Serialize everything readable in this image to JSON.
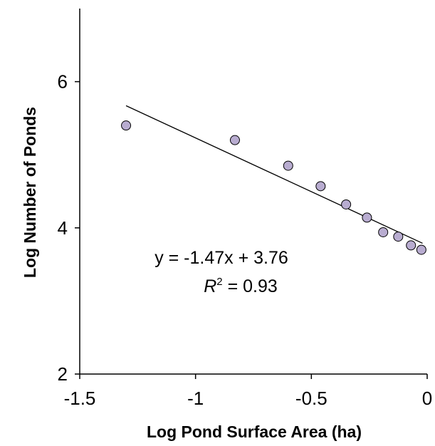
{
  "chart_data": {
    "type": "scatter",
    "xlabel": "Log Pond Surface Area (ha)",
    "ylabel": "Log Number of Ponds",
    "xlim": [
      -1.5,
      0
    ],
    "ylim": [
      2,
      7
    ],
    "x_ticks": [
      "-1.5",
      "-1",
      "-0.5",
      "0"
    ],
    "y_ticks": [
      "2",
      "4",
      "6"
    ],
    "grid": false,
    "series": [
      {
        "x": [
          -1.3,
          -0.83,
          -0.6,
          -0.46,
          -0.35,
          -0.26,
          -0.19,
          -0.125,
          -0.07,
          -0.025
        ],
        "y": [
          5.4,
          5.2,
          4.85,
          4.57,
          4.32,
          4.14,
          3.94,
          3.88,
          3.76,
          3.7
        ],
        "marker_color": "#b8acd0",
        "marker_edge": "#000000"
      }
    ],
    "trendline": {
      "slope": -1.47,
      "intercept": 3.76,
      "x_range": [
        -1.3,
        -0.02
      ]
    },
    "annotations": {
      "equation": "y = -1.47x + 3.76",
      "r2_symbol": "R",
      "r2_superscript": "2",
      "r2_value": " = 0.93"
    }
  }
}
